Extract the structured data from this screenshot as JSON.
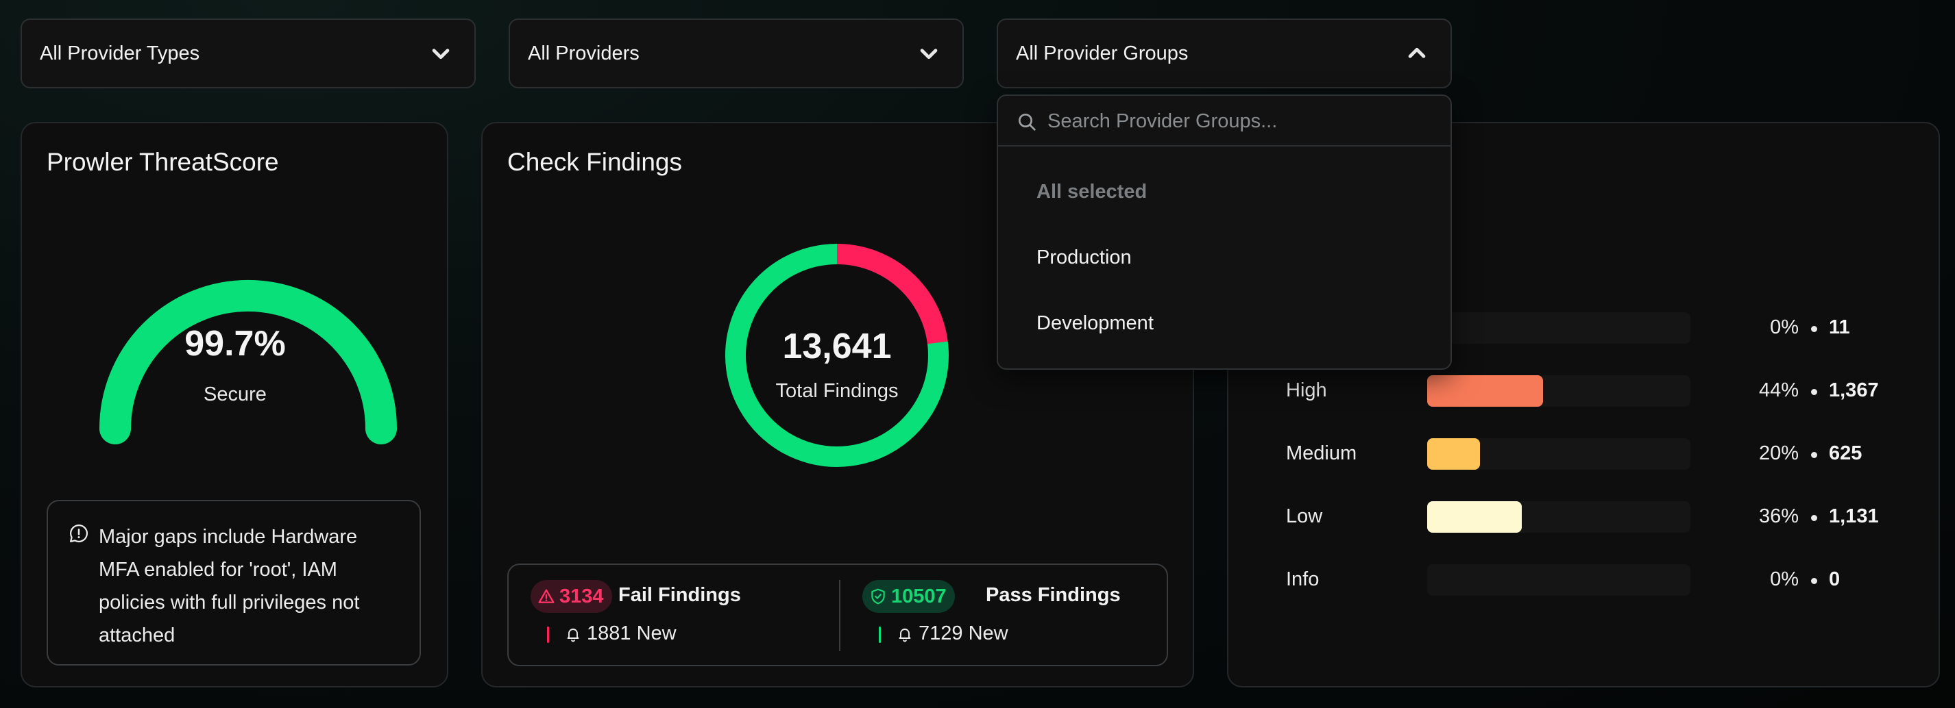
{
  "filters": {
    "provider_types": {
      "value": "All Provider Types"
    },
    "providers": {
      "value": "All Providers"
    },
    "provider_groups": {
      "value": "All Provider Groups"
    }
  },
  "dropdown": {
    "search_placeholder": "Search Provider Groups...",
    "items": [
      {
        "label": "All selected",
        "selected": true
      },
      {
        "label": "Production"
      },
      {
        "label": "Development"
      }
    ]
  },
  "threatscore": {
    "title": "Prowler ThreatScore",
    "score": 99.7,
    "score_text": "99.7%",
    "label": "Secure",
    "gauge_color": "#0ae07a",
    "note": "Major gaps include Hardware MFA enabled for 'root', IAM policies with full privileges not attached"
  },
  "check_findings": {
    "title": "Check Findings",
    "total_text": "13,641",
    "total_label": "Total Findings",
    "fail": {
      "count": 3134,
      "count_text": "3134",
      "label": "Fail Findings",
      "new_text": "1881 New",
      "color": "#ff1f5a"
    },
    "pass": {
      "count": 10507,
      "count_text": "10507",
      "label": "Pass Findings",
      "new_text": "7129 New",
      "color": "#0ae07a"
    }
  },
  "severity": {
    "rows": [
      {
        "name": "",
        "percent": 0,
        "percent_text": "0%",
        "count_text": "11",
        "color": "#ff3b5c"
      },
      {
        "name": "High",
        "percent": 44,
        "percent_text": "44%",
        "count_text": "1,367",
        "color": "#f77a58"
      },
      {
        "name": "Medium",
        "percent": 20,
        "percent_text": "20%",
        "count_text": "625",
        "color": "#fec45a"
      },
      {
        "name": "Low",
        "percent": 36,
        "percent_text": "36%",
        "count_text": "1,131",
        "color": "#fff9d1"
      },
      {
        "name": "Info",
        "percent": 0,
        "percent_text": "0%",
        "count_text": "0",
        "color": "#6b6b6b"
      }
    ]
  }
}
